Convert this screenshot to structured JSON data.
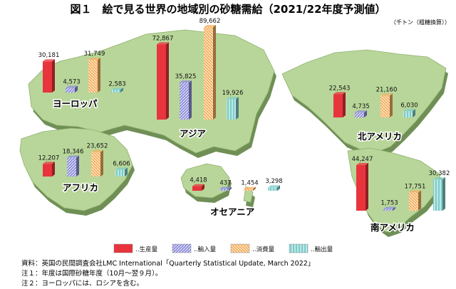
{
  "title": "図１　絵で見る世界の地域別の砂糖需給（2021/22年度予測値）",
  "unit_note": "（千トン（粗糖換算））",
  "notes": [
    "資料：英国の民間調査会社LMC International「Quarterly Statistical Update, March 2022」",
    "注１：年度は国際砂糖年度（10月～翌９月）。",
    "注２：ヨーロッパには、ロシアを含む。"
  ],
  "legend": [
    {
      "key": "production",
      "label": "生産量",
      "color": "#e8343c"
    },
    {
      "key": "imports",
      "label": "輸入量",
      "color": "#8f8fdc"
    },
    {
      "key": "consumption",
      "label": "消費量",
      "color": "#f5b060"
    },
    {
      "key": "exports",
      "label": "輸出量",
      "color": "#7ccdca"
    }
  ],
  "colors": {
    "land": "#b8d699",
    "land_edge": "#8fb070",
    "land_shadow": "#6f8f56"
  },
  "chart_data": {
    "type": "bar",
    "title": "絵で見る世界の地域別の砂糖需給（2021/22年度予測値）",
    "unit": "千トン（粗糖換算）",
    "series_names": [
      "生産量",
      "輸入量",
      "消費量",
      "輸出量"
    ],
    "regions": [
      {
        "name": "ヨーロッパ",
        "values": [
          30181,
          4573,
          31749,
          2583
        ],
        "labels": [
          "30,181",
          "4,573",
          "31,749",
          "2,583"
        ]
      },
      {
        "name": "アジア",
        "values": [
          72867,
          35825,
          89662,
          19926
        ],
        "labels": [
          "72,867",
          "35,825",
          "89,662",
          "19,926"
        ]
      },
      {
        "name": "北アメリカ",
        "values": [
          22543,
          4735,
          21160,
          6030
        ],
        "labels": [
          "22,543",
          "4,735",
          "21,160",
          "6,030"
        ]
      },
      {
        "name": "アフリカ",
        "values": [
          12207,
          18346,
          23652,
          6606
        ],
        "labels": [
          "12,207",
          "18,346",
          "23,652",
          "6,606"
        ]
      },
      {
        "name": "オセアニア",
        "values": [
          4418,
          437,
          1454,
          3298
        ],
        "labels": [
          "4,418",
          "437",
          "1,454",
          "3,298"
        ]
      },
      {
        "name": "南アメリカ",
        "values": [
          44247,
          1753,
          17751,
          30382
        ],
        "labels": [
          "44,247",
          "1,753",
          "17,751",
          "30,382"
        ]
      }
    ]
  }
}
